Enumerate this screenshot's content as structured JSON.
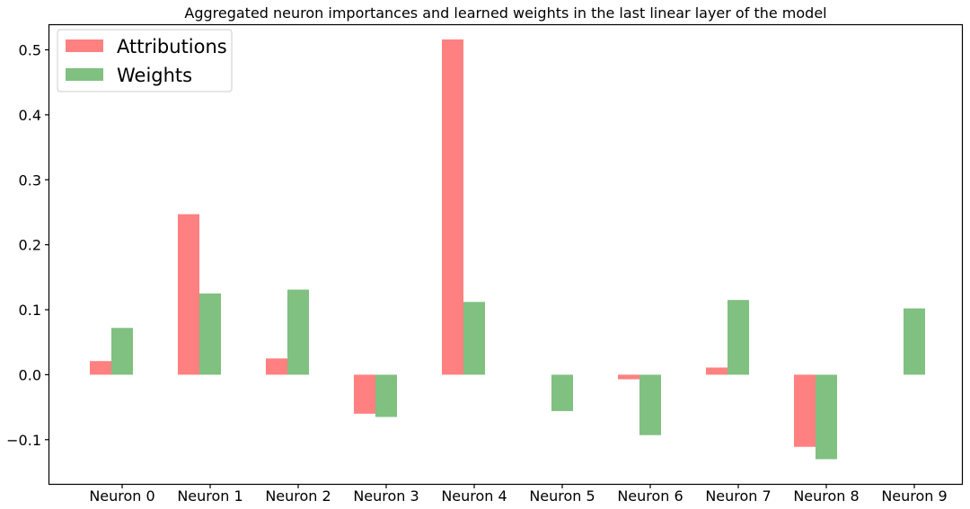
{
  "chart_data": {
    "type": "bar",
    "title": "Aggregated neuron importances and learned weights in the last linear layer of the model",
    "xlabel": "",
    "ylabel": "",
    "categories": [
      "Neuron 0",
      "Neuron 1",
      "Neuron 2",
      "Neuron 3",
      "Neuron 4",
      "Neuron 5",
      "Neuron 6",
      "Neuron 7",
      "Neuron 8",
      "Neuron 9"
    ],
    "series": [
      {
        "name": "Attributions",
        "color": "#ff8080",
        "values": [
          0.021,
          0.247,
          0.025,
          -0.06,
          0.516,
          0.0,
          -0.007,
          0.011,
          -0.111,
          0.0
        ]
      },
      {
        "name": "Weights",
        "color": "#80c080",
        "values": [
          0.072,
          0.125,
          0.131,
          -0.065,
          0.112,
          -0.056,
          -0.093,
          0.115,
          -0.13,
          0.102
        ]
      }
    ],
    "ylim": [
      -0.168,
      0.538
    ],
    "yticks": [
      -0.1,
      0.0,
      0.1,
      0.2,
      0.3,
      0.4,
      0.5
    ],
    "ytick_labels": [
      "−0.1",
      "0.0",
      "0.1",
      "0.2",
      "0.3",
      "0.4",
      "0.5"
    ],
    "legend": {
      "position": "top-left"
    },
    "grid": false
  }
}
